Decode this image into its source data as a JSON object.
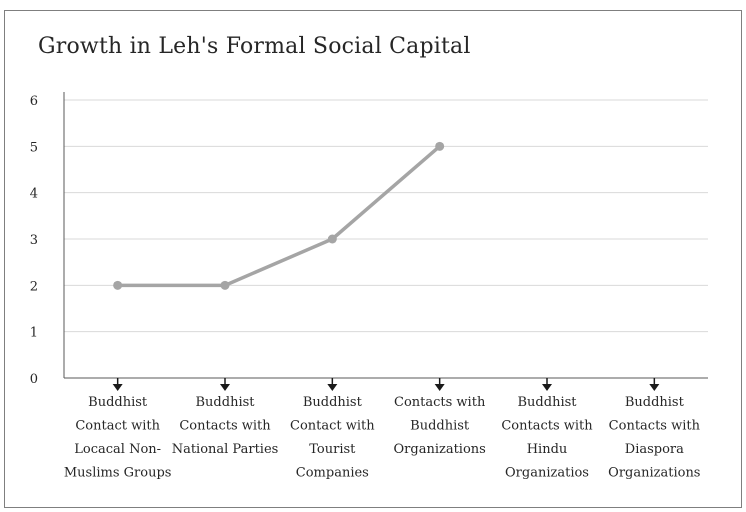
{
  "chart_data": {
    "type": "line",
    "title": "Growth in Leh's Formal Social Capital",
    "xlabel": "",
    "ylabel": "",
    "ylim": [
      0,
      6
    ],
    "y_ticks": [
      0,
      1,
      2,
      3,
      4,
      5,
      6
    ],
    "grid": true,
    "legend": "none",
    "categories": [
      "Buddhist Contact with Locacal Non-Muslims Groups",
      "Buddhist Contacts with National Parties",
      "Buddhist Contact with Tourist Companies",
      "Contacts with Buddhist Organizations",
      "Buddhist Contacts with Hindu Organizatios",
      "Buddhist Contacts with Diaspora Organizations"
    ],
    "category_lines": [
      [
        "Buddhist",
        "Contact with",
        "Locacal Non-",
        "Muslims Groups"
      ],
      [
        "Buddhist",
        "Contacts with",
        "National Parties"
      ],
      [
        "Buddhist",
        "Contact with",
        "Tourist",
        "Companies"
      ],
      [
        "Contacts with",
        "Buddhist",
        "Organizations"
      ],
      [
        "Buddhist",
        "Contacts with",
        "Hindu",
        "Organizatios"
      ],
      [
        "Buddhist",
        "Contacts with",
        "Diaspora",
        "Organizations"
      ]
    ],
    "series": [
      {
        "values": [
          2,
          2,
          3,
          5,
          null,
          null
        ]
      }
    ],
    "colors": {
      "line": "#a5a5a5",
      "marker": "#a5a5a5",
      "grid": "#d9d9d9",
      "axis": "#595959",
      "arrow": "#1a1a1a"
    }
  }
}
